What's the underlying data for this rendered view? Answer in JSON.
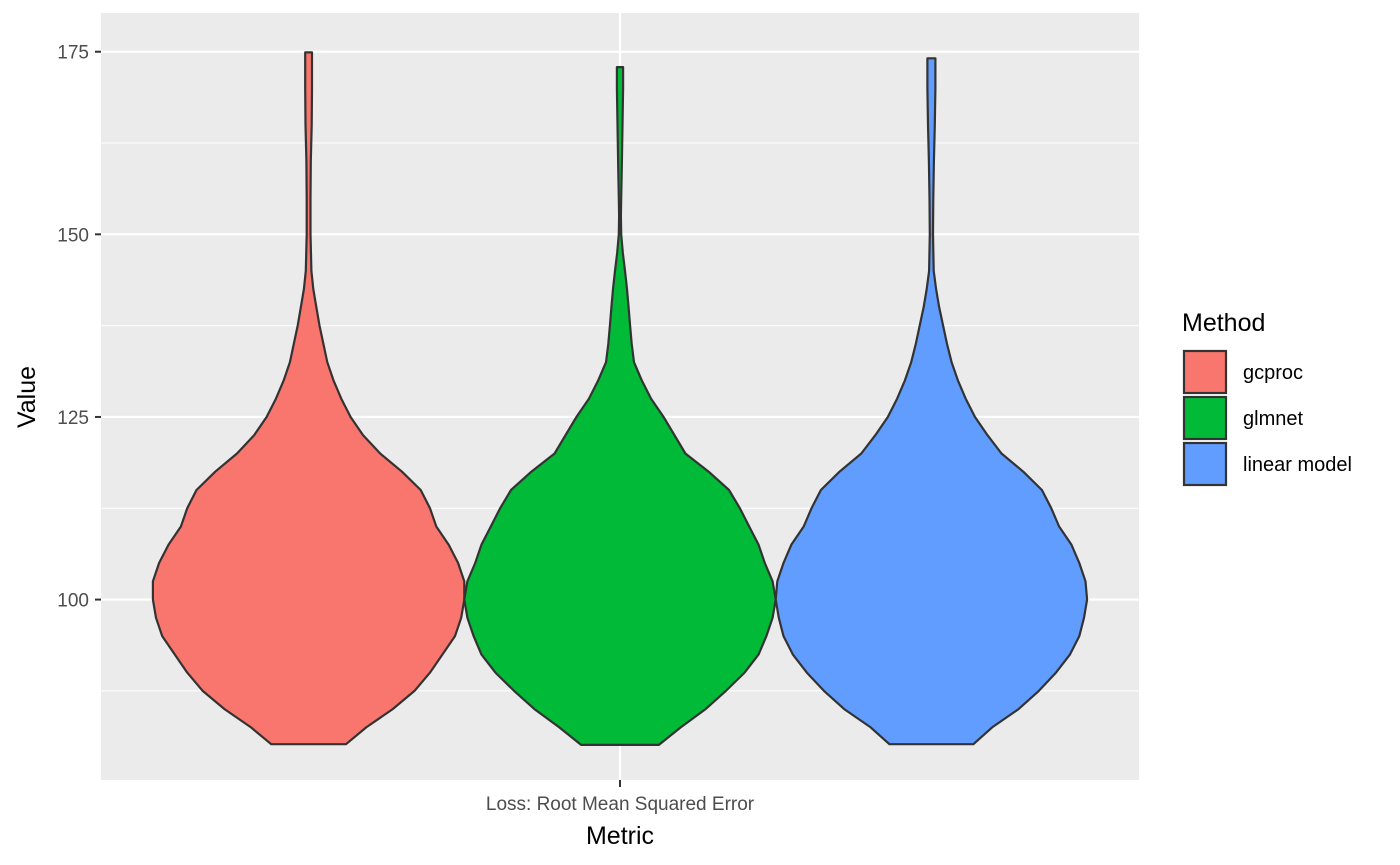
{
  "chart_data": {
    "type": "violin",
    "xlabel": "Metric",
    "ylabel": "Value",
    "categories": [
      "Loss: Root Mean Squared Error"
    ],
    "yticks": [
      100,
      125,
      150,
      175
    ],
    "ylim": [
      75.3,
      180.3
    ],
    "grid": true,
    "legend": {
      "title": "Method",
      "position": "right"
    },
    "series": [
      {
        "name": "gcproc",
        "color": "#F8766D",
        "min": 80.2,
        "max": 174.9,
        "density": [
          [
            80.2,
            0.24
          ],
          [
            82.5,
            0.37
          ],
          [
            85.0,
            0.54
          ],
          [
            87.5,
            0.68
          ],
          [
            90.0,
            0.78
          ],
          [
            92.5,
            0.86
          ],
          [
            95.0,
            0.94
          ],
          [
            97.5,
            0.98
          ],
          [
            100.0,
            1.0
          ],
          [
            102.5,
            1.0
          ],
          [
            105.0,
            0.96
          ],
          [
            107.5,
            0.9
          ],
          [
            110.0,
            0.82
          ],
          [
            112.5,
            0.78
          ],
          [
            115.0,
            0.72
          ],
          [
            117.5,
            0.6
          ],
          [
            120.0,
            0.46
          ],
          [
            122.5,
            0.35
          ],
          [
            125.0,
            0.27
          ],
          [
            127.5,
            0.21
          ],
          [
            130.0,
            0.16
          ],
          [
            132.5,
            0.12
          ],
          [
            135.0,
            0.095
          ],
          [
            137.5,
            0.07
          ],
          [
            140.0,
            0.05
          ],
          [
            142.5,
            0.03
          ],
          [
            145.0,
            0.018
          ],
          [
            150.0,
            0.012
          ],
          [
            155.0,
            0.012
          ],
          [
            160.0,
            0.014
          ],
          [
            165.0,
            0.02
          ],
          [
            170.0,
            0.022
          ],
          [
            174.9,
            0.022
          ]
        ]
      },
      {
        "name": "glmnet",
        "color": "#00BA38",
        "min": 80.1,
        "max": 172.9,
        "density": [
          [
            80.1,
            0.25
          ],
          [
            82.5,
            0.39
          ],
          [
            85.0,
            0.55
          ],
          [
            87.5,
            0.68
          ],
          [
            90.0,
            0.8
          ],
          [
            92.5,
            0.89
          ],
          [
            95.0,
            0.94
          ],
          [
            97.5,
            0.98
          ],
          [
            100.0,
            1.0
          ],
          [
            102.5,
            0.98
          ],
          [
            105.0,
            0.93
          ],
          [
            107.5,
            0.89
          ],
          [
            110.0,
            0.83
          ],
          [
            112.5,
            0.77
          ],
          [
            115.0,
            0.7
          ],
          [
            117.5,
            0.57
          ],
          [
            120.0,
            0.42
          ],
          [
            122.5,
            0.35
          ],
          [
            125.0,
            0.28
          ],
          [
            127.5,
            0.2
          ],
          [
            130.0,
            0.14
          ],
          [
            132.5,
            0.09
          ],
          [
            135.0,
            0.075
          ],
          [
            137.5,
            0.065
          ],
          [
            140.0,
            0.055
          ],
          [
            142.5,
            0.045
          ],
          [
            145.0,
            0.032
          ],
          [
            147.5,
            0.018
          ],
          [
            150.0,
            0.008
          ],
          [
            152.5,
            0.006
          ],
          [
            155.0,
            0.008
          ],
          [
            160.0,
            0.012
          ],
          [
            165.0,
            0.016
          ],
          [
            170.0,
            0.02
          ],
          [
            172.9,
            0.02
          ]
        ]
      },
      {
        "name": "linear model",
        "color": "#619CFF",
        "min": 80.2,
        "max": 174.1,
        "density": [
          [
            80.2,
            0.27
          ],
          [
            82.5,
            0.39
          ],
          [
            85.0,
            0.56
          ],
          [
            87.5,
            0.69
          ],
          [
            90.0,
            0.8
          ],
          [
            92.5,
            0.89
          ],
          [
            95.0,
            0.95
          ],
          [
            97.5,
            0.98
          ],
          [
            100.0,
            1.0
          ],
          [
            102.5,
            0.99
          ],
          [
            105.0,
            0.95
          ],
          [
            107.5,
            0.9
          ],
          [
            110.0,
            0.82
          ],
          [
            112.5,
            0.77
          ],
          [
            115.0,
            0.71
          ],
          [
            117.5,
            0.59
          ],
          [
            120.0,
            0.45
          ],
          [
            122.5,
            0.36
          ],
          [
            125.0,
            0.28
          ],
          [
            127.5,
            0.22
          ],
          [
            130.0,
            0.17
          ],
          [
            132.5,
            0.13
          ],
          [
            135.0,
            0.1
          ],
          [
            137.5,
            0.075
          ],
          [
            140.0,
            0.05
          ],
          [
            142.5,
            0.03
          ],
          [
            145.0,
            0.015
          ],
          [
            150.0,
            0.01
          ],
          [
            155.0,
            0.012
          ],
          [
            160.0,
            0.016
          ],
          [
            165.0,
            0.022
          ],
          [
            170.0,
            0.026
          ],
          [
            174.1,
            0.026
          ]
        ]
      }
    ]
  }
}
